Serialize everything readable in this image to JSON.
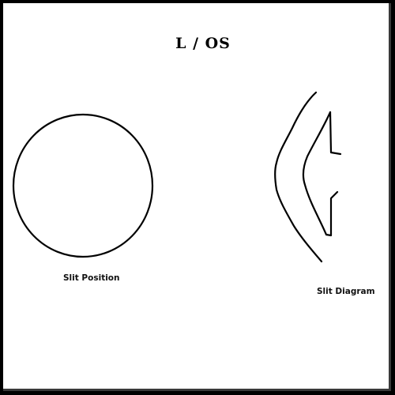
{
  "title": "L / OS",
  "labels": {
    "slit_position": "Slit Position",
    "slit_diagram": "Slit Diagram"
  },
  "colors": {
    "frame": "#000000",
    "background": "#ffffff",
    "stroke": "#000000"
  }
}
